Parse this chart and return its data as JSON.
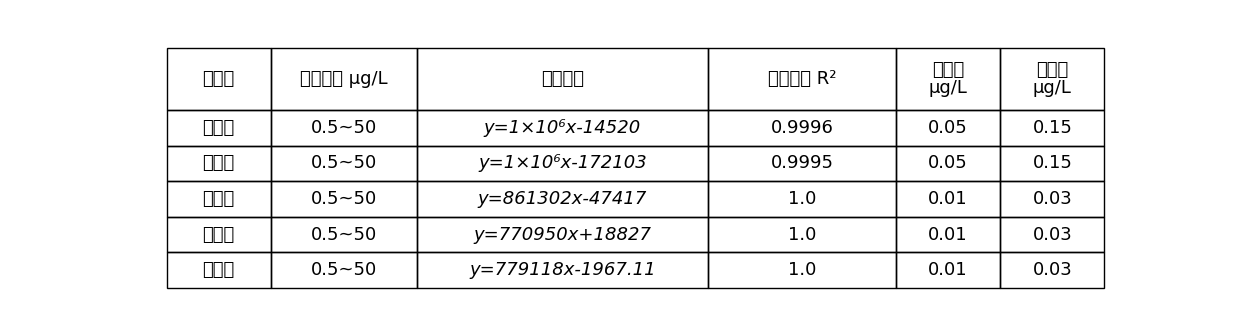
{
  "headers": [
    [
      "化合物",
      "线性范围 μg/L",
      "回归方程",
      "相关系数 R²",
      "检出限\nμg/L",
      "定量限\nμg/L"
    ]
  ],
  "rows": [
    [
      "三环唑",
      "0.5~50",
      "y=1×10⁶x-14520",
      "0.9996",
      "0.05",
      "0.15"
    ],
    [
      "粉唑醇",
      "0.5~50",
      "y=1×10⁶x-172103",
      "0.9995",
      "0.05",
      "0.15"
    ],
    [
      "戊唑醇",
      "0.5~50",
      "y=861302x-47417",
      "1.0",
      "0.01",
      "0.03"
    ],
    [
      "己唑醇",
      "0.5~50",
      "y=770950x+18827",
      "1.0",
      "0.01",
      "0.03"
    ],
    [
      "丙环唑",
      "0.5~50",
      "y=779118x-1967.11",
      "1.0",
      "0.01",
      "0.03"
    ]
  ],
  "col_weights": [
    1.0,
    1.4,
    2.8,
    1.8,
    1.0,
    1.0
  ],
  "background_color": "#ffffff",
  "text_color": "#000000",
  "line_color": "#000000",
  "font_size": 13,
  "header_font_size": 13
}
